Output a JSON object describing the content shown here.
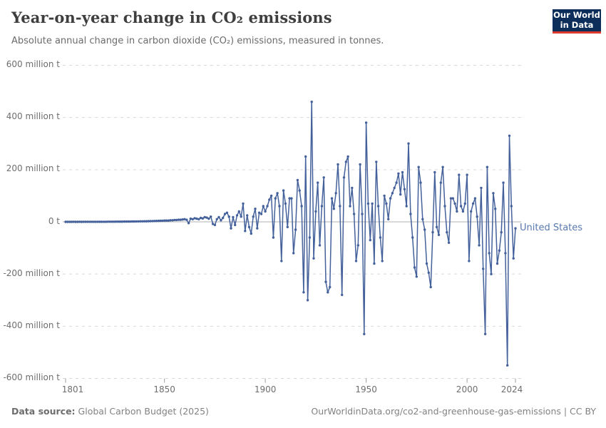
{
  "header": {
    "title": "Year-on-year change in CO₂ emissions",
    "subtitle": "Absolute annual change in carbon dioxide (CO₂) emissions, measured in tonnes.",
    "logo_line1": "Our World",
    "logo_line2": "in Data",
    "logo_bg_color": "#0d2e5a",
    "logo_bar_color": "#dc3a2d"
  },
  "chart_data": {
    "type": "line",
    "title": "Year-on-year change in CO₂ emissions",
    "unit": "million tonnes CO₂",
    "grid": true,
    "x_start": 1801,
    "x_end": 2024,
    "ylim": [
      -600,
      600
    ],
    "x_tick_years": [
      1801,
      1850,
      1900,
      1950,
      2000,
      2024
    ],
    "x_tick_labels": [
      "1801",
      "1850",
      "1900",
      "1950",
      "2000",
      "2024"
    ],
    "y_ticks": [
      {
        "value": 600,
        "label": "600 million t"
      },
      {
        "value": 400,
        "label": "400 million t"
      },
      {
        "value": 200,
        "label": "200 million t"
      },
      {
        "value": 0,
        "label": "0 t"
      },
      {
        "value": -200,
        "label": "-200 million t"
      },
      {
        "value": -400,
        "label": "-400 million t"
      },
      {
        "value": -600,
        "label": "-600 million t"
      }
    ],
    "series": [
      {
        "name": "United States",
        "color": "#44619b",
        "label_color": "#5878ae",
        "values": [
          0.1,
          0.1,
          0.1,
          0.1,
          0.2,
          0.1,
          0.1,
          0.2,
          0.1,
          0.2,
          0.2,
          0.2,
          0.3,
          0.2,
          0.3,
          0.3,
          0.3,
          0.4,
          0.3,
          0.4,
          0.4,
          0.5,
          0.5,
          0.6,
          0.6,
          0.7,
          0.7,
          0.8,
          0.9,
          1.0,
          1.0,
          1.1,
          1.2,
          1.3,
          1.5,
          1.6,
          1.7,
          1.9,
          2.0,
          2.2,
          2.3,
          2.5,
          2.7,
          3.0,
          3.2,
          3.5,
          3.8,
          4.1,
          4.4,
          4.8,
          5,
          5,
          6,
          6,
          7,
          7,
          8,
          8,
          9,
          10,
          8,
          -5,
          12,
          10,
          14,
          12,
          10,
          15,
          13,
          18,
          16,
          12,
          20,
          -8,
          -12,
          10,
          18,
          6,
          15,
          30,
          35,
          20,
          -25,
          18,
          -12,
          25,
          40,
          20,
          70,
          -35,
          25,
          -20,
          -45,
          20,
          50,
          -25,
          35,
          30,
          60,
          40,
          60,
          85,
          100,
          -60,
          90,
          110,
          60,
          -150,
          120,
          70,
          -20,
          90,
          90,
          -120,
          -30,
          160,
          120,
          60,
          -270,
          250,
          -300,
          -60,
          460,
          -140,
          40,
          150,
          -90,
          60,
          170,
          -230,
          -270,
          -250,
          90,
          50,
          110,
          220,
          60,
          -280,
          170,
          230,
          250,
          60,
          130,
          30,
          -150,
          -90,
          220,
          30,
          -430,
          380,
          70,
          -70,
          70,
          -160,
          230,
          60,
          -60,
          -150,
          100,
          70,
          10,
          90,
          110,
          130,
          150,
          185,
          105,
          190,
          125,
          60,
          300,
          30,
          -60,
          -175,
          -210,
          210,
          150,
          10,
          -30,
          -160,
          -195,
          -250,
          -40,
          190,
          -20,
          -50,
          150,
          210,
          60,
          -40,
          -80,
          90,
          90,
          70,
          40,
          180,
          60,
          40,
          70,
          180,
          -150,
          40,
          70,
          90,
          20,
          -90,
          130,
          -180,
          -430,
          210,
          -120,
          -200,
          110,
          50,
          -160,
          -110,
          -40,
          150,
          -120,
          -550,
          330,
          60,
          -140,
          -25
        ]
      }
    ],
    "colors": {
      "gridline": "#d9d9d9",
      "zero_line": "#b0b0b0",
      "tick": "#9e9e9e"
    }
  },
  "footer": {
    "source_label": "Data source:",
    "source_value": "Global Carbon Budget (2025)",
    "right_text": "OurWorldinData.org/co2-and-greenhouse-gas-emissions | CC BY"
  }
}
